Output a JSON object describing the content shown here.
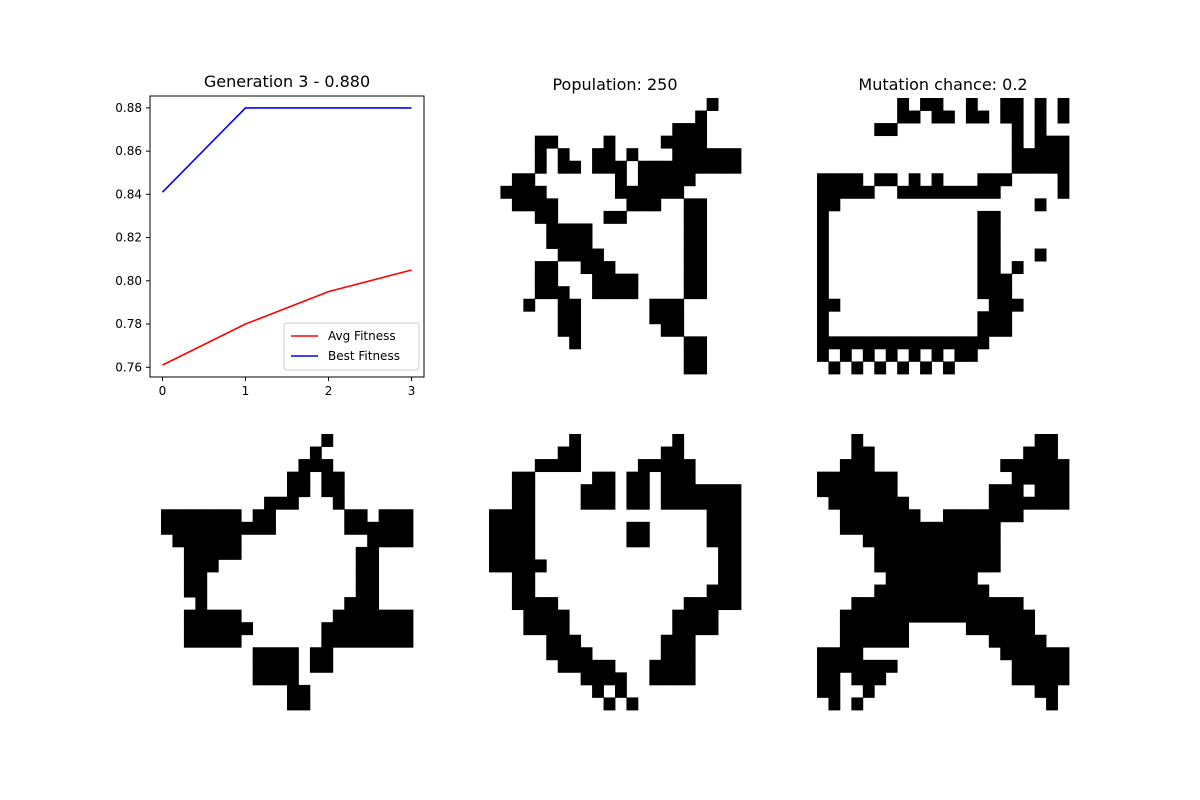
{
  "chart_data": [
    {
      "type": "line",
      "title": "Generation 3 - 0.880",
      "x": [
        0,
        1,
        2,
        3
      ],
      "series": [
        {
          "name": "Avg Fitness",
          "color": "#ff0000",
          "values": [
            0.761,
            0.78,
            0.795,
            0.805
          ]
        },
        {
          "name": "Best Fitness",
          "color": "#0000ff",
          "values": [
            0.841,
            0.88,
            0.88,
            0.88
          ]
        }
      ],
      "xlim": [
        -0.15,
        3.15
      ],
      "ylim": [
        0.7555,
        0.8855
      ],
      "xticks": [
        "0",
        "1",
        "2",
        "3"
      ],
      "yticks": [
        "0.76",
        "0.78",
        "0.80",
        "0.82",
        "0.84",
        "0.86",
        "0.88"
      ],
      "legend": "lower-right",
      "grid": false
    },
    {
      "type": "heatmap",
      "title": "Population: 250",
      "colors": {
        "on": "#000000",
        "off": "#ffffff"
      },
      "grid": [
        "0000000000000000000100",
        "0000000000000000001000",
        "0000000000000000111000",
        "0000110000100001111000",
        "0000101001101000111111",
        "0000101101110111111111",
        "0011000000010111110000",
        "0111100000011111100000",
        "0011110000001110011000",
        "0000110000110000011000",
        "0000011110000000011000",
        "0000011110000000011000",
        "0000001111000000011000",
        "0000110011100000011000",
        "0000110001111000011000",
        "0000111001111000011000",
        "0001001100000011100000",
        "0000001100000011100000",
        "0000001100000001100000",
        "0000000100000000011000",
        "0000000000000000011000",
        "0000000000000000011000"
      ]
    },
    {
      "type": "heatmap",
      "title": "Mutation chance: 0.2",
      "colors": {
        "on": "#000000",
        "off": "#ffffff"
      },
      "grid": [
        "0000000101100100110101",
        "0000000110110110110101",
        "0000011000000000010100",
        "0000000000000000010111",
        "0000000000000000011111",
        "0000000000000000011111",
        "1111011010100011100001",
        "1111100111111111000001",
        "1100000000000000000100",
        "1000000000000011000000",
        "1000000000000011000000",
        "1000000000000011000000",
        "1000000000000011000100",
        "1000000000000011010000",
        "1000000000000011100000",
        "1000000000000011100000",
        "1100000000000001110000",
        "1000000000000011100000",
        "1000000000000011100000",
        "1111111111111110000000",
        "1010101010101100000000",
        "0101010101010000000000"
      ]
    },
    {
      "type": "heatmap",
      "title": "",
      "colors": {
        "on": "#000000",
        "off": "#ffffff"
      },
      "grid": [
        "0000000000000010000000",
        "0000000000000100000000",
        "0000000000001110000000",
        "0000000000011011000000",
        "0000000000011011000000",
        "0000000001110001000000",
        "1111111011000000110111",
        "1111111111000000111111",
        "0111111000000000001111",
        "0011111000000000011000",
        "0011100000000000011000",
        "0011000000000000011000",
        "0011000000000000011000",
        "0001000000000000111000",
        "0011111000000001111111",
        "0011111100000011111111",
        "0011111000000011111111",
        "0000000011110110000000",
        "0000000011110110000000",
        "0000000011110000000000",
        "0000000000011000000000",
        "0000000000011000000000"
      ]
    },
    {
      "type": "heatmap",
      "title": "",
      "colors": {
        "on": "#000000",
        "off": "#ffffff"
      },
      "grid": [
        "0000000100000000100000",
        "0000001100000001100000",
        "0000111100000111110000",
        "0011000001101101110000",
        "0011000011101101111111",
        "0011000011101101111111",
        "1111000000000000000111",
        "1111000000001100000111",
        "1111000000001100000111",
        "1111000000000000000011",
        "1111100000000000000011",
        "0011000000000000000011",
        "0011000000000000000111",
        "0011110000000000011111",
        "0001111000000000111100",
        "0001111000000000111100",
        "0000011100000001110000",
        "0000011110000001110000",
        "0000001111100011110000",
        "0000000011110011110000",
        "0000000001010000000000",
        "0000000000101000000000"
      ]
    },
    {
      "type": "heatmap",
      "title": "",
      "colors": {
        "on": "#000000",
        "off": "#ffffff"
      },
      "grid": [
        "0001000000000000000110",
        "0001100000000000001110",
        "0011100000000000111111",
        "1111111000000000011111",
        "1111111000000001110111",
        "0111111100000001111111",
        "0011111110011111110000",
        "0011111111111111000000",
        "0000111111111111000000",
        "0000011111111111000000",
        "0000011111111111000000",
        "0000001111111100000000",
        "0000011111111110000000",
        "0001111111111111110000",
        "0011111111111111111000",
        "0011111100000111111000",
        "0011111100000001111100",
        "1111000000000000111111",
        "1111111000000000011111",
        "1101110000000000011111",
        "1100100000000000000110",
        "0101000000000000000010"
      ]
    }
  ]
}
